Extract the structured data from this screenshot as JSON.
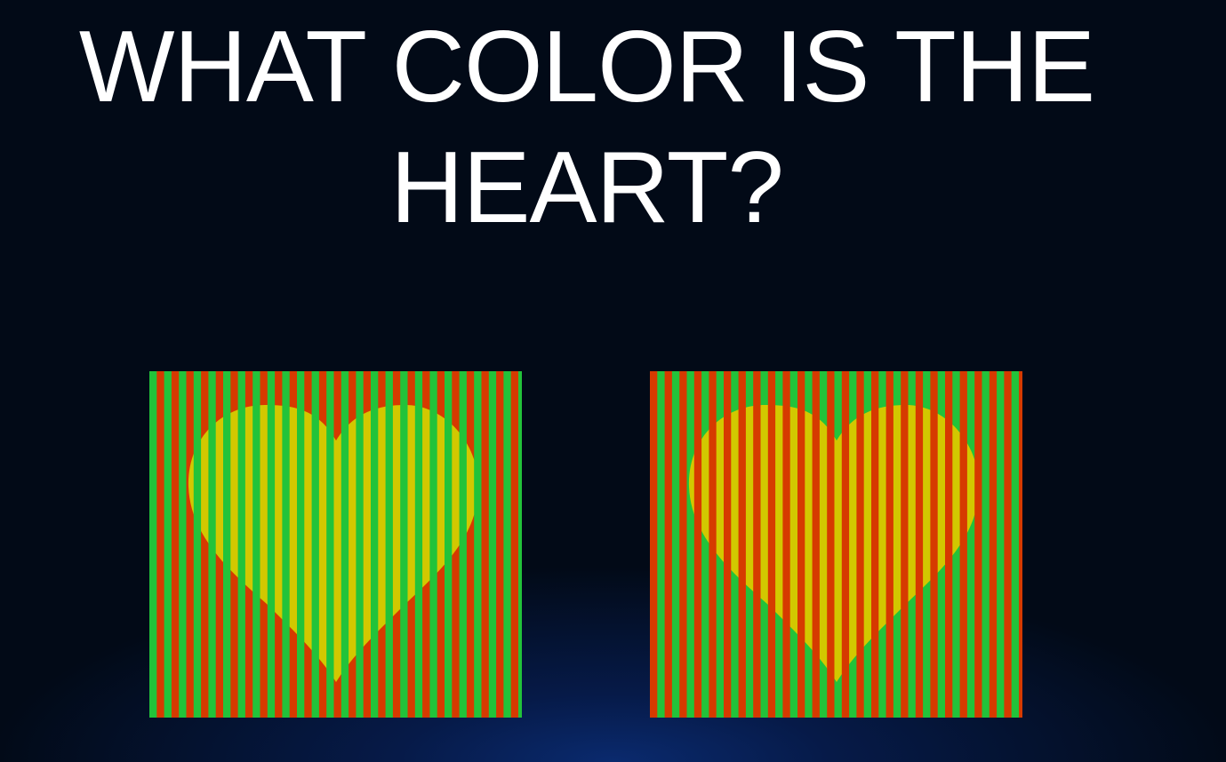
{
  "title": "WHAT COLOR IS THE HEART?",
  "colors": {
    "background": "#020a17",
    "stripe_green": "#22c33a",
    "stripe_red": "#d63a00",
    "stripe_yellow": "#d2c800",
    "text": "#ffffff"
  },
  "panels": [
    {
      "name": "left",
      "stripes": [
        "#22c33a",
        "#d63a00"
      ],
      "heart_stripes": [
        "#22c33a",
        "#d2c800"
      ]
    },
    {
      "name": "right",
      "stripes": [
        "#d63a00",
        "#22c33a"
      ],
      "heart_stripes": [
        "#d63a00",
        "#d2c800"
      ]
    }
  ]
}
